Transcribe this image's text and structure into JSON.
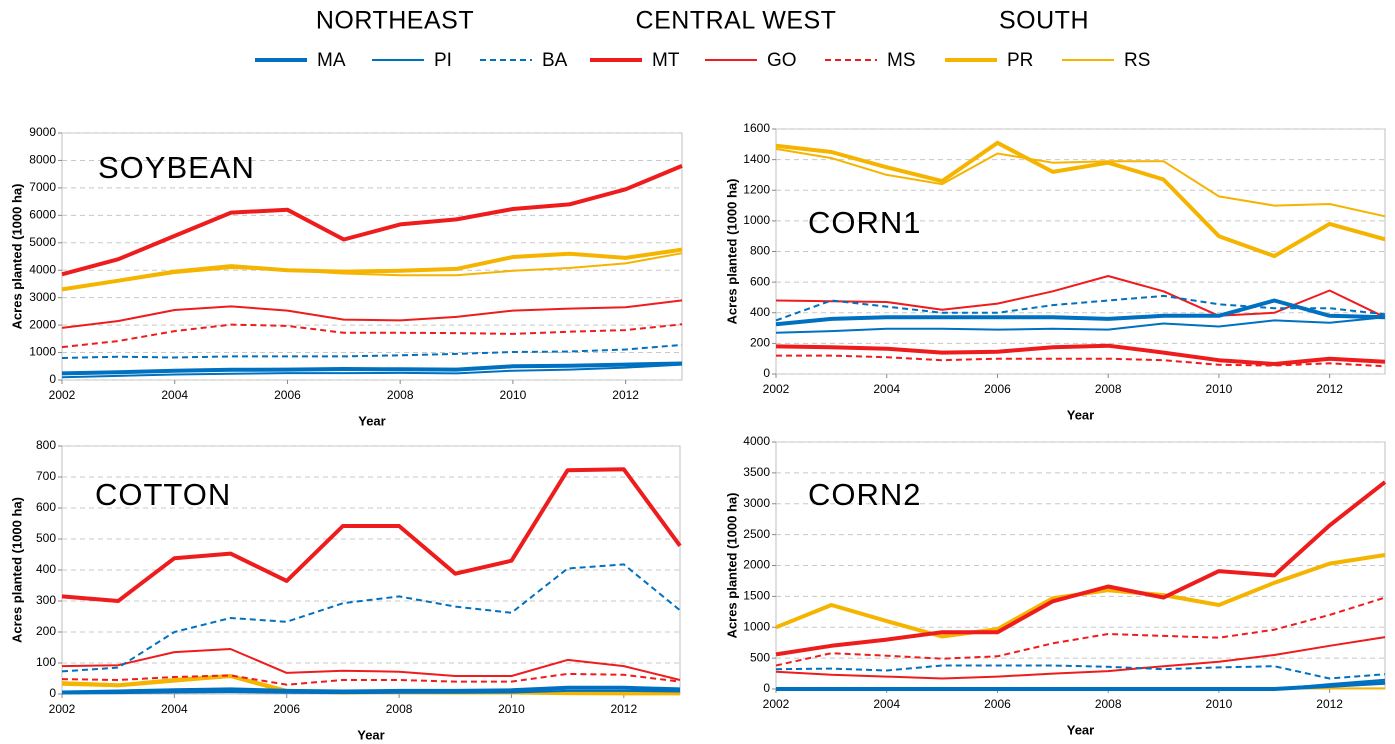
{
  "legend_groups": [
    "NORTHEAST",
    "CENTRAL WEST",
    "SOUTH"
  ],
  "chart_data": [
    {
      "type": "line",
      "title": "SOYBEAN",
      "x_label": "Year",
      "y_label": "Acres planted (1000 ha)",
      "x": [
        2002,
        2003,
        2004,
        2005,
        2006,
        2007,
        2008,
        2009,
        2010,
        2011,
        2012,
        2013
      ],
      "xlim": [
        2002,
        2013
      ],
      "xticks": [
        2002,
        2004,
        2006,
        2008,
        2010,
        2012
      ],
      "ylim": [
        0,
        9000
      ],
      "yticks": [
        0,
        1000,
        2000,
        3000,
        4000,
        5000,
        6000,
        7000,
        8000,
        9000
      ],
      "grid": true,
      "series": [
        {
          "name": "MA",
          "color": "#0070c0",
          "style": "thick",
          "values": [
            240,
            280,
            340,
            370,
            380,
            400,
            390,
            380,
            500,
            520,
            560,
            600
          ]
        },
        {
          "name": "PI",
          "color": "#0070c0",
          "style": "thin",
          "values": [
            100,
            150,
            200,
            230,
            250,
            250,
            260,
            240,
            340,
            380,
            450,
            560
          ]
        },
        {
          "name": "BA",
          "color": "#0070c0",
          "style": "dashed",
          "values": [
            800,
            850,
            820,
            860,
            860,
            860,
            900,
            950,
            1020,
            1040,
            1110,
            1280
          ]
        },
        {
          "name": "MT",
          "color": "#ee1c1c",
          "style": "thick",
          "values": [
            3850,
            4400,
            5250,
            6100,
            6200,
            5120,
            5670,
            5850,
            6230,
            6400,
            6950,
            7800
          ]
        },
        {
          "name": "GO",
          "color": "#ee1c1c",
          "style": "thin",
          "values": [
            1900,
            2150,
            2550,
            2680,
            2530,
            2200,
            2170,
            2300,
            2530,
            2600,
            2650,
            2900
          ]
        },
        {
          "name": "MS",
          "color": "#ee1c1c",
          "style": "dashed",
          "values": [
            1200,
            1420,
            1780,
            2020,
            1970,
            1720,
            1720,
            1710,
            1680,
            1760,
            1820,
            2030
          ]
        },
        {
          "name": "PR",
          "color": "#f5b400",
          "style": "thick",
          "values": [
            3300,
            3620,
            3950,
            4150,
            4000,
            3950,
            3980,
            4050,
            4480,
            4600,
            4450,
            4750
          ]
        },
        {
          "name": "RS",
          "color": "#f5b400",
          "style": "thin",
          "values": [
            3300,
            3600,
            3900,
            4080,
            4000,
            3880,
            3820,
            3820,
            3980,
            4080,
            4250,
            4620
          ]
        }
      ]
    },
    {
      "type": "line",
      "title": "CORN1",
      "x_label": "Year",
      "y_label": "Acres planted (1000 ha)",
      "x": [
        2002,
        2003,
        2004,
        2005,
        2006,
        2007,
        2008,
        2009,
        2010,
        2011,
        2012,
        2013
      ],
      "xlim": [
        2002,
        2013
      ],
      "xticks": [
        2002,
        2004,
        2006,
        2008,
        2010,
        2012
      ],
      "ylim": [
        0,
        1600
      ],
      "yticks": [
        0,
        200,
        400,
        600,
        800,
        1000,
        1200,
        1400,
        1600
      ],
      "grid": true,
      "series": [
        {
          "name": "MA",
          "color": "#0070c0",
          "style": "thick",
          "values": [
            325,
            360,
            370,
            370,
            370,
            370,
            360,
            380,
            380,
            480,
            380,
            370
          ]
        },
        {
          "name": "PI",
          "color": "#0070c0",
          "style": "thin",
          "values": [
            270,
            280,
            295,
            295,
            290,
            295,
            290,
            330,
            310,
            350,
            335,
            370
          ]
        },
        {
          "name": "BA",
          "color": "#0070c0",
          "style": "dashed",
          "values": [
            350,
            480,
            440,
            400,
            400,
            450,
            480,
            510,
            455,
            430,
            430,
            390
          ]
        },
        {
          "name": "MT",
          "color": "#ee1c1c",
          "style": "thick",
          "values": [
            180,
            175,
            165,
            140,
            145,
            175,
            185,
            140,
            90,
            65,
            100,
            80
          ]
        },
        {
          "name": "GO",
          "color": "#ee1c1c",
          "style": "thin",
          "values": [
            480,
            475,
            470,
            420,
            460,
            540,
            640,
            540,
            380,
            400,
            545,
            370
          ]
        },
        {
          "name": "MS",
          "color": "#ee1c1c",
          "style": "dashed",
          "values": [
            120,
            120,
            110,
            90,
            100,
            100,
            100,
            90,
            60,
            55,
            70,
            50
          ]
        },
        {
          "name": "PR",
          "color": "#f5b400",
          "style": "thick",
          "values": [
            1490,
            1450,
            1350,
            1260,
            1510,
            1320,
            1380,
            1270,
            900,
            770,
            980,
            880
          ]
        },
        {
          "name": "RS",
          "color": "#f5b400",
          "style": "thin",
          "values": [
            1470,
            1410,
            1300,
            1240,
            1440,
            1380,
            1390,
            1390,
            1160,
            1100,
            1110,
            1030
          ]
        }
      ]
    },
    {
      "type": "line",
      "title": "COTTON",
      "x_label": "Year",
      "y_label": "Acres planted (1000 ha)",
      "x": [
        2002,
        2003,
        2004,
        2005,
        2006,
        2007,
        2008,
        2009,
        2010,
        2011,
        2012,
        2013
      ],
      "xlim": [
        2002,
        2013
      ],
      "xticks": [
        2002,
        2004,
        2006,
        2008,
        2010,
        2012
      ],
      "ylim": [
        0,
        800
      ],
      "yticks": [
        0,
        100,
        200,
        300,
        400,
        500,
        600,
        700,
        800
      ],
      "grid": true,
      "series": [
        {
          "name": "MA",
          "color": "#0070c0",
          "style": "thick",
          "values": [
            5,
            8,
            12,
            15,
            10,
            8,
            10,
            10,
            12,
            20,
            20,
            15
          ]
        },
        {
          "name": "PI",
          "color": "#0070c0",
          "style": "thin",
          "values": [
            2,
            3,
            5,
            6,
            4,
            3,
            4,
            4,
            5,
            10,
            10,
            8
          ]
        },
        {
          "name": "BA",
          "color": "#0070c0",
          "style": "dashed",
          "values": [
            73,
            85,
            200,
            245,
            233,
            293,
            315,
            282,
            262,
            405,
            418,
            270
          ]
        },
        {
          "name": "MT",
          "color": "#ee1c1c",
          "style": "thick",
          "values": [
            315,
            300,
            438,
            453,
            365,
            542,
            542,
            388,
            430,
            722,
            725,
            478
          ]
        },
        {
          "name": "GO",
          "color": "#ee1c1c",
          "style": "thin",
          "values": [
            90,
            93,
            135,
            145,
            68,
            75,
            72,
            58,
            58,
            110,
            90,
            45
          ]
        },
        {
          "name": "MS",
          "color": "#ee1c1c",
          "style": "dashed",
          "values": [
            48,
            45,
            55,
            60,
            30,
            45,
            45,
            40,
            40,
            65,
            62,
            40
          ]
        },
        {
          "name": "PR",
          "color": "#f5b400",
          "style": "thick",
          "values": [
            35,
            28,
            45,
            58,
            10,
            5,
            8,
            5,
            5,
            3,
            2,
            2
          ]
        },
        {
          "name": "RS",
          "color": "#f5b400",
          "style": "thin",
          "values": [
            30,
            25,
            40,
            55,
            5,
            3,
            3,
            2,
            2,
            2,
            2,
            2
          ]
        }
      ]
    },
    {
      "type": "line",
      "title": "CORN2",
      "x_label": "Year",
      "y_label": "Acres planted (1000 ha)",
      "x": [
        2002,
        2003,
        2004,
        2005,
        2006,
        2007,
        2008,
        2009,
        2010,
        2011,
        2012,
        2013
      ],
      "xlim": [
        2002,
        2013
      ],
      "xticks": [
        2002,
        2004,
        2006,
        2008,
        2010,
        2012
      ],
      "ylim": [
        0,
        4000
      ],
      "yticks": [
        0,
        500,
        1000,
        1500,
        2000,
        2500,
        3000,
        3500,
        4000
      ],
      "grid": true,
      "series": [
        {
          "name": "MA",
          "color": "#0070c0",
          "style": "thick",
          "values": [
            0,
            0,
            0,
            0,
            0,
            0,
            0,
            0,
            0,
            0,
            50,
            100
          ]
        },
        {
          "name": "PI",
          "color": "#0070c0",
          "style": "thin",
          "values": [
            0,
            0,
            0,
            0,
            0,
            0,
            0,
            0,
            0,
            0,
            80,
            150
          ]
        },
        {
          "name": "BA",
          "color": "#0070c0",
          "style": "dashed",
          "values": [
            320,
            330,
            300,
            380,
            380,
            380,
            360,
            320,
            350,
            370,
            170,
            240
          ]
        },
        {
          "name": "MT",
          "color": "#ee1c1c",
          "style": "thick",
          "values": [
            560,
            700,
            800,
            920,
            920,
            1420,
            1660,
            1480,
            1910,
            1840,
            2650,
            3350
          ]
        },
        {
          "name": "GO",
          "color": "#ee1c1c",
          "style": "thin",
          "values": [
            280,
            230,
            200,
            170,
            200,
            250,
            290,
            370,
            440,
            550,
            700,
            840
          ]
        },
        {
          "name": "MS",
          "color": "#ee1c1c",
          "style": "dashed",
          "values": [
            380,
            580,
            540,
            490,
            530,
            740,
            890,
            860,
            830,
            960,
            1200,
            1480
          ]
        },
        {
          "name": "PR",
          "color": "#f5b400",
          "style": "thick",
          "values": [
            1000,
            1360,
            1100,
            850,
            970,
            1470,
            1600,
            1520,
            1360,
            1720,
            2030,
            2170
          ]
        },
        {
          "name": "RS",
          "color": "#f5b400",
          "style": "thin",
          "values": [
            10,
            10,
            10,
            10,
            10,
            10,
            10,
            10,
            10,
            10,
            10,
            10
          ]
        }
      ]
    }
  ]
}
